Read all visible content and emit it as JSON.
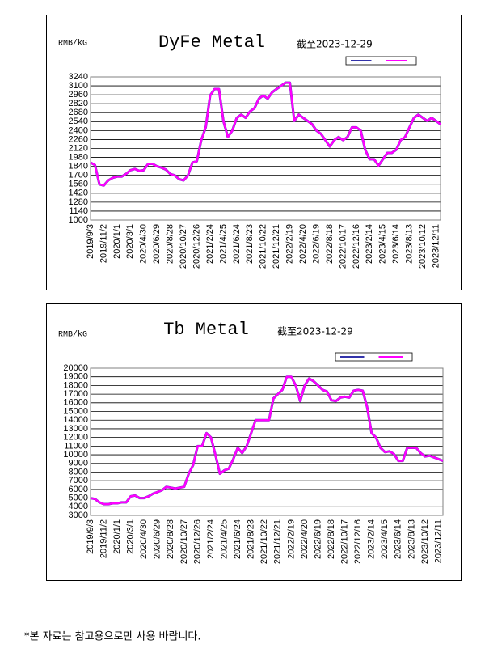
{
  "chart_data": [
    {
      "type": "line",
      "title": "DyFe Metal",
      "subtitle": "截至2023-12-29",
      "y_label": "RMB/kG",
      "categories": [
        "2019/9/3",
        null,
        null,
        "2019/11/2",
        null,
        null,
        "2020/1/1",
        null,
        null,
        "2020/3/1",
        null,
        null,
        "2020/4/30",
        null,
        null,
        "2020/6/29",
        null,
        null,
        "2020/8/28",
        null,
        null,
        "2020/10/27",
        null,
        null,
        "2020/12/26",
        null,
        null,
        "2021/2/24",
        null,
        null,
        "2021/4/25",
        null,
        null,
        "2021/6/24",
        null,
        null,
        "2021/8/23",
        null,
        null,
        "2021/10/22",
        null,
        null,
        "2021/12/21",
        null,
        null,
        "2022/2/19",
        null,
        null,
        "2022/4/20",
        null,
        null,
        "2022/6/19",
        null,
        null,
        "2022/8/18",
        null,
        null,
        "2022/10/17",
        null,
        null,
        "2022/12/16",
        null,
        null,
        "2023/2/14",
        null,
        null,
        "2023/4/15",
        null,
        null,
        "2023/6/14",
        null,
        null,
        "2023/8/13",
        null,
        null,
        "2023/10/12",
        null,
        null,
        "2023/12/11",
        null
      ],
      "series": [
        {
          "color": "#3333aa",
          "values": [
            1900,
            1860,
            1560,
            1540,
            1620,
            1660,
            1680,
            1680,
            1720,
            1780,
            1800,
            1770,
            1780,
            1880,
            1880,
            1840,
            1820,
            1790,
            1720,
            1700,
            1640,
            1620,
            1700,
            1900,
            1920,
            2250,
            2450,
            2950,
            3050,
            3050,
            2550,
            2300,
            2400,
            2600,
            2650,
            2600,
            2700,
            2750,
            2900,
            2950,
            2900,
            3000,
            3050,
            3100,
            3150,
            3150,
            2550,
            2650,
            2600,
            2550,
            2500,
            2400,
            2350,
            2250,
            2150,
            2250,
            2300,
            2250,
            2300,
            2450,
            2450,
            2400,
            2100,
            1950,
            1950,
            1850,
            1950,
            2050,
            2050,
            2100,
            2250,
            2300,
            2450,
            2600,
            2650,
            2600,
            2550,
            2600,
            2550,
            2500
          ]
        },
        {
          "color": "#ff00ff",
          "values": [
            1900,
            1860,
            1560,
            1540,
            1620,
            1660,
            1680,
            1680,
            1720,
            1780,
            1800,
            1770,
            1780,
            1880,
            1880,
            1840,
            1820,
            1790,
            1720,
            1700,
            1640,
            1620,
            1700,
            1900,
            1920,
            2250,
            2450,
            2950,
            3050,
            3050,
            2550,
            2300,
            2400,
            2600,
            2650,
            2600,
            2700,
            2750,
            2900,
            2950,
            2900,
            3000,
            3050,
            3100,
            3150,
            3150,
            2550,
            2650,
            2600,
            2550,
            2500,
            2400,
            2350,
            2250,
            2150,
            2250,
            2300,
            2250,
            2300,
            2450,
            2450,
            2400,
            2100,
            1950,
            1950,
            1850,
            1950,
            2050,
            2050,
            2100,
            2250,
            2300,
            2450,
            2600,
            2650,
            2600,
            2550,
            2600,
            2550,
            2500
          ]
        }
      ],
      "ylim": [
        1000,
        3240
      ],
      "yticks": [
        1000,
        1140,
        1280,
        1420,
        1560,
        1700,
        1840,
        1980,
        2120,
        2260,
        2400,
        2540,
        2680,
        2820,
        2960,
        3100,
        3240
      ],
      "grid": true
    },
    {
      "type": "line",
      "title": "Tb Metal",
      "subtitle": "截至2023-12-29",
      "y_label": "RMB/kG",
      "categories": [
        "2019/9/3",
        null,
        null,
        "2019/11/2",
        null,
        null,
        "2020/1/1",
        null,
        null,
        "2020/3/1",
        null,
        null,
        "2020/4/30",
        null,
        null,
        "2020/6/29",
        null,
        null,
        "2020/8/28",
        null,
        null,
        "2020/10/27",
        null,
        null,
        "2020/12/26",
        null,
        null,
        "2021/2/24",
        null,
        null,
        "2021/4/25",
        null,
        null,
        "2021/6/24",
        null,
        null,
        "2021/8/23",
        null,
        null,
        "2021/10/22",
        null,
        null,
        "2021/12/21",
        null,
        null,
        "2022/2/19",
        null,
        null,
        "2022/4/20",
        null,
        null,
        "2022/6/19",
        null,
        null,
        "2022/8/18",
        null,
        null,
        "2022/10/17",
        null,
        null,
        "2022/12/16",
        null,
        null,
        "2023/2/14",
        null,
        null,
        "2023/4/15",
        null,
        null,
        "2023/6/14",
        null,
        null,
        "2023/8/13",
        null,
        null,
        "2023/10/12",
        null,
        null,
        "2023/12/11",
        null
      ],
      "series": [
        {
          "color": "#3333aa",
          "values": [
            5000,
            4900,
            4500,
            4300,
            4300,
            4400,
            4400,
            4500,
            4500,
            5200,
            5300,
            5000,
            5000,
            5200,
            5500,
            5700,
            5900,
            6300,
            6200,
            6100,
            6200,
            6300,
            7800,
            8800,
            11000,
            11000,
            12500,
            12000,
            10000,
            7800,
            8200,
            8400,
            9500,
            10800,
            10200,
            11000,
            12500,
            14000,
            14000,
            14000,
            14000,
            16500,
            17000,
            17500,
            19000,
            19000,
            18000,
            16200,
            18000,
            18800,
            18500,
            18000,
            17500,
            17300,
            16300,
            16200,
            16600,
            16700,
            16600,
            17400,
            17500,
            17400,
            15500,
            12500,
            12000,
            10800,
            10300,
            10400,
            10100,
            9300,
            9300,
            10800,
            10800,
            10800,
            10200,
            9800,
            9900,
            9700,
            9500,
            9300
          ]
        },
        {
          "color": "#ff00ff",
          "values": [
            5000,
            4900,
            4500,
            4300,
            4300,
            4400,
            4400,
            4500,
            4500,
            5200,
            5300,
            5000,
            5000,
            5200,
            5500,
            5700,
            5900,
            6300,
            6200,
            6100,
            6200,
            6300,
            7800,
            8800,
            11000,
            11000,
            12500,
            12000,
            10000,
            7800,
            8200,
            8400,
            9500,
            10800,
            10200,
            11000,
            12500,
            14000,
            14000,
            14000,
            14000,
            16500,
            17000,
            17500,
            19000,
            19000,
            18000,
            16200,
            18000,
            18800,
            18500,
            18000,
            17500,
            17300,
            16300,
            16200,
            16600,
            16700,
            16600,
            17400,
            17500,
            17400,
            15500,
            12500,
            12000,
            10800,
            10300,
            10400,
            10100,
            9300,
            9300,
            10800,
            10800,
            10800,
            10200,
            9800,
            9900,
            9700,
            9500,
            9300
          ]
        }
      ],
      "ylim": [
        3000,
        20000
      ],
      "yticks": [
        3000,
        4000,
        5000,
        6000,
        7000,
        8000,
        9000,
        10000,
        11000,
        12000,
        13000,
        14000,
        15000,
        16000,
        17000,
        18000,
        19000,
        20000
      ],
      "grid": true
    }
  ],
  "footnote": "*본 자료는 참고용으로만 사용 바랍니다."
}
